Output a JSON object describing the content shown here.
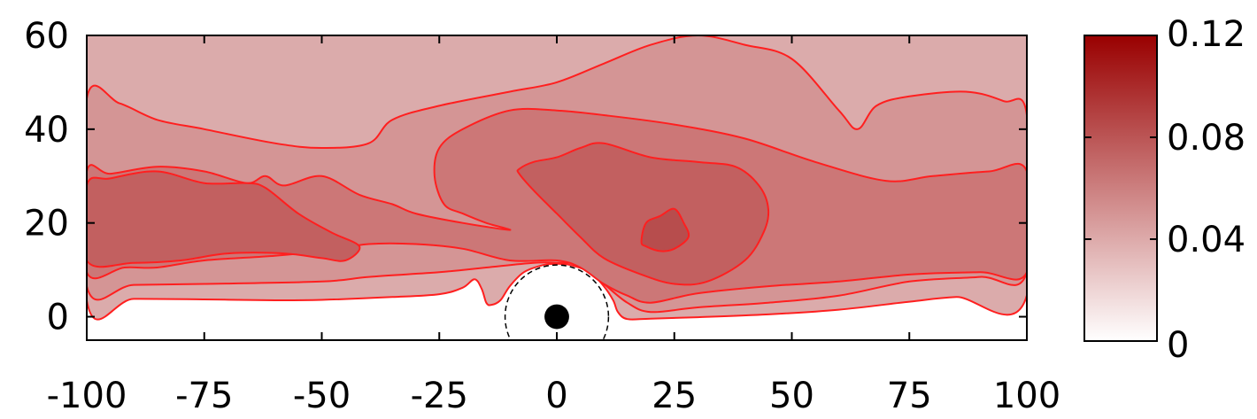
{
  "chart_data": {
    "type": "contour",
    "title": "",
    "xlabel": "",
    "ylabel": "",
    "xlim": [
      -100,
      100
    ],
    "ylim": [
      -5,
      60
    ],
    "grid": false,
    "x_ticks": [
      -100,
      -75,
      -50,
      -25,
      0,
      25,
      50,
      75,
      100
    ],
    "y_ticks": [
      0,
      20,
      40,
      60
    ],
    "x_tick_labels": [
      "-100",
      "-75",
      "-50",
      "-25",
      "0",
      "25",
      "50",
      "75",
      "100"
    ],
    "y_tick_labels": [
      "0",
      "20",
      "40",
      "60"
    ],
    "colorbar": {
      "min": 0,
      "max": 0.12,
      "ticks": [
        0,
        0.04,
        0.08,
        0.12
      ],
      "tick_labels": [
        "0",
        "0.04",
        "0.08",
        "0.12"
      ],
      "color_low": "#ffffff",
      "color_high": "#990000"
    },
    "contour_line_color": "#ff1f1f",
    "levels": [
      {
        "value": 0.02,
        "fill": "#dbabab",
        "boundary": [
          [
            -100,
            3.5
          ],
          [
            -90,
            3.8
          ],
          [
            -75,
            3.7
          ],
          [
            -60,
            3.5
          ],
          [
            -50,
            3.6
          ],
          [
            -35,
            4.2
          ],
          [
            -25,
            4.8
          ],
          [
            -20,
            6.2
          ],
          [
            -17.5,
            8.0
          ],
          [
            -16,
            6.0
          ],
          [
            -15,
            3.0
          ],
          [
            -14,
            2.5
          ],
          [
            -12,
            3.5
          ],
          [
            -10,
            6.5
          ],
          [
            -7,
            9.5
          ],
          [
            -3,
            11.0
          ],
          [
            0,
            11.3
          ],
          [
            3,
            11.0
          ],
          [
            7,
            9.5
          ],
          [
            10,
            6.5
          ],
          [
            12,
            3.5
          ],
          [
            13,
            1.0
          ],
          [
            15,
            -0.5
          ],
          [
            20,
            -0.4
          ],
          [
            30,
            -0.1
          ],
          [
            45,
            0.5
          ],
          [
            60,
            1.5
          ],
          [
            75,
            3.2
          ],
          [
            85,
            4.2
          ],
          [
            100,
            4.6
          ],
          [
            100,
            60
          ],
          [
            -100,
            60
          ]
        ]
      },
      {
        "value": 0.04,
        "fill": "#d49595",
        "boundary": [
          [
            -100,
            6.5
          ],
          [
            -90,
            6.8
          ],
          [
            -75,
            7.0
          ],
          [
            -50,
            7.5
          ],
          [
            -40,
            8.5
          ],
          [
            -25,
            9.5
          ],
          [
            -15,
            10.5
          ],
          [
            -5,
            11.5
          ],
          [
            0,
            11.5
          ],
          [
            5,
            11.0
          ],
          [
            10,
            7.0
          ],
          [
            15,
            3.0
          ],
          [
            20,
            1.0
          ],
          [
            30,
            2.0
          ],
          [
            45,
            3.0
          ],
          [
            60,
            4.5
          ],
          [
            75,
            7.5
          ],
          [
            90,
            8.5
          ],
          [
            100,
            9.5
          ],
          [
            100,
            43
          ],
          [
            95,
            46
          ],
          [
            87,
            48
          ],
          [
            75,
            47
          ],
          [
            68,
            45
          ],
          [
            64,
            40
          ],
          [
            60,
            44
          ],
          [
            50,
            55
          ],
          [
            40,
            58
          ],
          [
            30,
            60
          ],
          [
            20,
            58
          ],
          [
            10,
            54
          ],
          [
            0,
            50
          ],
          [
            -10,
            48
          ],
          [
            -25,
            45
          ],
          [
            -35,
            42
          ],
          [
            -40,
            37
          ],
          [
            -50,
            36
          ],
          [
            -60,
            37
          ],
          [
            -75,
            40
          ],
          [
            -85,
            42
          ],
          [
            -93,
            45.5
          ],
          [
            -100,
            46.5
          ]
        ]
      },
      {
        "value": 0.06,
        "fill": "#cc7777",
        "boundary": [
          [
            -100,
            9.5
          ],
          [
            -92,
            10.5
          ],
          [
            -85,
            10.5
          ],
          [
            -75,
            12.0
          ],
          [
            -60,
            13.0
          ],
          [
            -50,
            14.0
          ],
          [
            -40,
            15.5
          ],
          [
            -30,
            15.5
          ],
          [
            -20,
            14.5
          ],
          [
            -10,
            12.0
          ],
          [
            0,
            12.0
          ],
          [
            5,
            10.5
          ],
          [
            10,
            7.0
          ],
          [
            15,
            4.5
          ],
          [
            20,
            3.0
          ],
          [
            30,
            5.0
          ],
          [
            45,
            6.5
          ],
          [
            60,
            7.5
          ],
          [
            75,
            9.0
          ],
          [
            90,
            9.5
          ],
          [
            100,
            9.5
          ],
          [
            100,
            31
          ],
          [
            92,
            31
          ],
          [
            80,
            30
          ],
          [
            70,
            29
          ],
          [
            55,
            33
          ],
          [
            40,
            38
          ],
          [
            25,
            41
          ],
          [
            10,
            43
          ],
          [
            0,
            44
          ],
          [
            -10,
            44
          ],
          [
            -20,
            40
          ],
          [
            -25,
            36
          ],
          [
            -26,
            30
          ],
          [
            -24,
            24
          ],
          [
            -20,
            22
          ],
          [
            -15,
            20
          ],
          [
            -10,
            18.5
          ],
          [
            -20,
            20
          ],
          [
            -30,
            22
          ],
          [
            -35,
            24
          ],
          [
            -42,
            26
          ],
          [
            -50,
            30
          ],
          [
            -58,
            28
          ],
          [
            -62,
            30
          ],
          [
            -66,
            28.5
          ],
          [
            -75,
            31
          ],
          [
            -85,
            32
          ],
          [
            -95,
            30.5
          ],
          [
            -100,
            31
          ]
        ]
      },
      {
        "value": 0.08,
        "fill": "#c26060",
        "boundary": [
          [
            -100,
            12.0
          ],
          [
            -90,
            11.5
          ],
          [
            -80,
            12.0
          ],
          [
            -70,
            13.5
          ],
          [
            -58,
            13.5
          ],
          [
            -50,
            12.5
          ],
          [
            -45,
            12.0
          ],
          [
            -42,
            15.0
          ],
          [
            -48,
            18.0
          ],
          [
            -55,
            22.0
          ],
          [
            -62,
            27.5
          ],
          [
            -66,
            28.5
          ],
          [
            -75,
            28.5
          ],
          [
            -85,
            31.0
          ],
          [
            -95,
            29.5
          ],
          [
            -100,
            28.0
          ]
        ]
      },
      {
        "value": 0.08,
        "fill": "#c26060",
        "boundary": [
          [
            -8,
            30.5
          ],
          [
            -5,
            27.0
          ],
          [
            0,
            22.0
          ],
          [
            5,
            17.0
          ],
          [
            10,
            12.5
          ],
          [
            18,
            9.0
          ],
          [
            25,
            7.0
          ],
          [
            32,
            7.5
          ],
          [
            40,
            12.0
          ],
          [
            44,
            18.0
          ],
          [
            45,
            23.0
          ],
          [
            43,
            28.0
          ],
          [
            38,
            32.0
          ],
          [
            30,
            33.0
          ],
          [
            20,
            34.0
          ],
          [
            10,
            37.0
          ],
          [
            5,
            36.0
          ],
          [
            0,
            34.0
          ],
          [
            -5,
            33.0
          ],
          [
            -8,
            31.5
          ]
        ]
      },
      {
        "value": 0.1,
        "fill": "#b74d4d",
        "boundary": [
          [
            18,
            16.0
          ],
          [
            19,
            20.0
          ],
          [
            22,
            21.5
          ],
          [
            25,
            23.0
          ],
          [
            27,
            20.0
          ],
          [
            28,
            17.0
          ],
          [
            25,
            14.5
          ],
          [
            22,
            14.0
          ],
          [
            19,
            15.0
          ]
        ]
      }
    ],
    "annotations": {
      "circle_center": [
        0,
        0
      ],
      "inner_disk_radius": 2.5,
      "dashed_circle_radius": 11.0
    }
  }
}
